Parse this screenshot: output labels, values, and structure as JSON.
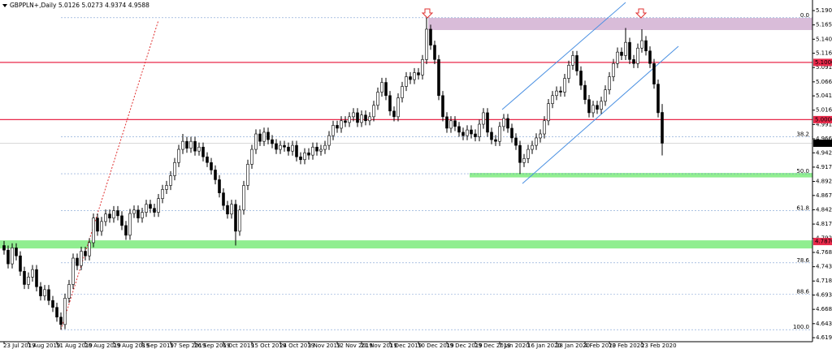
{
  "chart_data": {
    "type": "candlestick",
    "title": "GBPPLN+,Daily  5.0126 5.0273 4.9374 4.9588",
    "categories": [
      "23 Jul 2019",
      null,
      null,
      null,
      null,
      null,
      "1 Aug 2019",
      null,
      null,
      null,
      null,
      null,
      null,
      "11 Aug 2019",
      null,
      null,
      null,
      null,
      null,
      null,
      "20 Aug 2019",
      null,
      null,
      null,
      null,
      null,
      null,
      "29 Aug 2019",
      null,
      null,
      null,
      null,
      null,
      null,
      "8 Sep 2019",
      null,
      null,
      null,
      null,
      null,
      null,
      "17 Sep 2019",
      null,
      null,
      null,
      null,
      null,
      "26 Sep 2019",
      null,
      null,
      null,
      null,
      null,
      null,
      "6 Oct 2019",
      null,
      null,
      null,
      null,
      null,
      null,
      "15 Oct 2019",
      null,
      null,
      null,
      null,
      null,
      null,
      "24 Oct 2019",
      null,
      null,
      null,
      null,
      null,
      null,
      "3 Nov 2019",
      null,
      null,
      null,
      null,
      null,
      null,
      "12 Nov 2019",
      null,
      null,
      null,
      null,
      null,
      "21 Nov 2019",
      null,
      null,
      null,
      null,
      null,
      null,
      "1 Dec 2019",
      null,
      null,
      null,
      null,
      null,
      null,
      "10 Dec 2019",
      null,
      null,
      null,
      null,
      null,
      null,
      "19 Dec 2019",
      null,
      null,
      null,
      null,
      null,
      null,
      "29 Dec 2019",
      null,
      null,
      null,
      null,
      null,
      "7 Jan 2020",
      null,
      null,
      null,
      null,
      null,
      null,
      "16 Jan 2020",
      null,
      null,
      null,
      null,
      null,
      null,
      "28 Jan 2020",
      null,
      null,
      null,
      null,
      null,
      null,
      "4 Feb 2020",
      null,
      null,
      null,
      null,
      null,
      "13 Feb 2020",
      null,
      null,
      null,
      null,
      null,
      null,
      null,
      "23 Feb 2020",
      null,
      null,
      null,
      null,
      null
    ],
    "open": [
      4.78,
      4.772,
      4.748,
      4.776,
      4.762,
      4.735,
      4.712,
      4.725,
      4.738,
      4.708,
      4.692,
      4.703,
      4.684,
      4.672,
      4.655,
      4.642,
      4.688,
      4.712,
      4.758,
      4.745,
      4.77,
      4.762,
      4.785,
      4.828,
      4.805,
      4.822,
      4.835,
      4.828,
      4.841,
      4.832,
      4.815,
      4.798,
      4.836,
      4.842,
      4.828,
      4.838,
      4.852,
      4.845,
      4.838,
      4.862,
      4.878,
      4.885,
      4.902,
      4.925,
      4.948,
      4.962,
      4.95,
      4.962,
      4.945,
      4.952,
      4.935,
      4.925,
      4.912,
      4.895,
      4.872,
      4.85,
      4.835,
      4.852,
      4.805,
      4.842,
      4.885,
      4.922,
      4.948,
      4.975,
      4.962,
      4.978,
      4.965,
      4.958,
      4.948,
      4.955,
      4.952,
      4.945,
      4.955,
      4.935,
      4.93,
      4.942,
      4.938,
      4.952,
      4.945,
      4.948,
      4.955,
      4.972,
      4.99,
      4.985,
      4.998,
      4.995,
      5.005,
      5.012,
      4.995,
      5.008,
      4.998,
      5.005,
      5.025,
      5.048,
      5.065,
      5.042,
      5.015,
      5.005,
      5.038,
      5.058,
      5.075,
      5.07,
      5.082,
      5.078,
      5.105,
      5.158,
      5.13,
      5.105,
      5.042,
      5.005,
      4.985,
      4.998,
      4.988,
      4.978,
      4.972,
      4.982,
      4.975,
      4.97,
      4.992,
      5.012,
      4.978,
      4.965,
      4.962,
      4.988,
      5.002,
      4.985,
      4.968,
      4.955,
      4.925,
      4.932,
      4.948,
      4.955,
      4.968,
      4.975,
      4.998,
      5.028,
      5.042,
      5.05,
      5.048,
      5.072,
      5.095,
      5.112,
      5.085,
      5.06,
      5.035,
      5.012,
      5.025,
      5.018,
      5.032,
      5.052,
      5.075,
      5.098,
      5.118,
      5.112,
      5.135,
      5.105,
      5.098,
      5.125,
      5.138,
      5.12,
      5.098,
      5.062,
      5.0126
    ],
    "high": [
      4.788,
      4.78,
      4.784,
      4.784,
      4.77,
      4.743,
      4.733,
      4.746,
      4.746,
      4.716,
      4.711,
      4.711,
      4.692,
      4.68,
      4.663,
      4.696,
      4.72,
      4.766,
      4.766,
      4.778,
      4.778,
      4.793,
      4.836,
      4.836,
      4.83,
      4.843,
      4.843,
      4.849,
      4.849,
      4.84,
      4.823,
      4.844,
      4.85,
      4.85,
      4.846,
      4.86,
      4.86,
      4.853,
      4.87,
      4.886,
      4.893,
      4.91,
      4.933,
      4.956,
      4.975,
      4.97,
      4.97,
      4.97,
      4.96,
      4.96,
      4.943,
      4.933,
      4.92,
      4.903,
      4.88,
      4.858,
      4.86,
      4.86,
      4.85,
      4.893,
      4.93,
      4.956,
      4.983,
      4.983,
      4.986,
      4.986,
      4.973,
      4.966,
      4.963,
      4.963,
      4.96,
      4.963,
      4.963,
      4.943,
      4.95,
      4.95,
      4.96,
      4.96,
      4.956,
      4.963,
      4.98,
      4.998,
      4.998,
      5.006,
      5.006,
      5.013,
      5.02,
      5.02,
      5.016,
      5.016,
      5.013,
      5.033,
      5.056,
      5.073,
      5.073,
      5.05,
      5.023,
      5.046,
      5.066,
      5.083,
      5.083,
      5.09,
      5.09,
      5.113,
      5.178,
      5.166,
      5.138,
      5.113,
      5.05,
      5.013,
      5.006,
      5.006,
      4.996,
      4.986,
      4.99,
      4.99,
      4.983,
      5.0,
      5.02,
      5.02,
      4.986,
      4.973,
      4.996,
      5.01,
      5.01,
      4.993,
      4.976,
      4.963,
      4.94,
      4.956,
      4.963,
      4.976,
      4.983,
      5.006,
      5.036,
      5.05,
      5.058,
      5.058,
      5.08,
      5.103,
      5.12,
      5.12,
      5.093,
      5.068,
      5.043,
      5.033,
      5.033,
      5.04,
      5.06,
      5.083,
      5.106,
      5.126,
      5.126,
      5.16,
      5.143,
      5.113,
      5.133,
      5.158,
      5.146,
      5.128,
      5.106,
      5.07,
      5.0273
    ],
    "low": [
      4.764,
      4.74,
      4.74,
      4.754,
      4.727,
      4.704,
      4.704,
      4.717,
      4.7,
      4.684,
      4.684,
      4.676,
      4.664,
      4.647,
      4.633,
      4.634,
      4.68,
      4.704,
      4.737,
      4.737,
      4.754,
      4.754,
      4.777,
      4.797,
      4.797,
      4.814,
      4.82,
      4.82,
      4.824,
      4.807,
      4.79,
      4.79,
      4.828,
      4.82,
      4.82,
      4.83,
      4.837,
      4.83,
      4.83,
      4.854,
      4.87,
      4.877,
      4.894,
      4.917,
      4.94,
      4.942,
      4.942,
      4.937,
      4.937,
      4.927,
      4.917,
      4.904,
      4.887,
      4.864,
      4.842,
      4.827,
      4.827,
      4.78,
      4.797,
      4.834,
      4.877,
      4.914,
      4.94,
      4.954,
      4.954,
      4.957,
      4.95,
      4.94,
      4.94,
      4.944,
      4.937,
      4.937,
      4.927,
      4.922,
      4.922,
      4.93,
      4.93,
      4.937,
      4.937,
      4.94,
      4.947,
      4.964,
      4.977,
      4.977,
      4.987,
      4.987,
      4.997,
      4.987,
      4.987,
      4.99,
      4.99,
      4.997,
      5.017,
      5.04,
      5.034,
      5.007,
      4.997,
      4.997,
      5.03,
      5.05,
      5.062,
      5.062,
      5.07,
      5.07,
      5.097,
      5.122,
      5.097,
      5.034,
      4.997,
      4.977,
      4.977,
      4.98,
      4.97,
      4.964,
      4.964,
      4.967,
      4.962,
      4.962,
      4.984,
      4.97,
      4.957,
      4.954,
      4.954,
      4.98,
      4.977,
      4.96,
      4.947,
      4.905,
      4.917,
      4.924,
      4.94,
      4.947,
      4.96,
      4.967,
      4.99,
      5.02,
      5.034,
      5.04,
      5.04,
      5.064,
      5.087,
      5.077,
      5.052,
      5.027,
      5.004,
      5.004,
      5.01,
      5.01,
      5.024,
      5.044,
      5.067,
      5.09,
      5.104,
      5.104,
      5.097,
      5.09,
      5.09,
      5.117,
      5.112,
      5.09,
      5.054,
      5.004,
      4.9374
    ],
    "close": [
      4.772,
      4.748,
      4.776,
      4.762,
      4.735,
      4.712,
      4.725,
      4.738,
      4.708,
      4.692,
      4.703,
      4.684,
      4.672,
      4.655,
      4.642,
      4.688,
      4.712,
      4.758,
      4.745,
      4.77,
      4.762,
      4.785,
      4.828,
      4.805,
      4.822,
      4.835,
      4.828,
      4.841,
      4.832,
      4.815,
      4.798,
      4.836,
      4.842,
      4.828,
      4.838,
      4.852,
      4.845,
      4.838,
      4.862,
      4.878,
      4.885,
      4.902,
      4.925,
      4.948,
      4.962,
      4.95,
      4.962,
      4.945,
      4.952,
      4.935,
      4.925,
      4.912,
      4.895,
      4.872,
      4.85,
      4.835,
      4.852,
      4.805,
      4.842,
      4.885,
      4.922,
      4.948,
      4.975,
      4.962,
      4.978,
      4.965,
      4.958,
      4.948,
      4.955,
      4.952,
      4.945,
      4.955,
      4.935,
      4.93,
      4.942,
      4.938,
      4.952,
      4.945,
      4.948,
      4.955,
      4.972,
      4.99,
      4.985,
      4.998,
      4.995,
      5.005,
      5.012,
      4.995,
      5.008,
      4.998,
      5.005,
      5.025,
      5.048,
      5.065,
      5.042,
      5.015,
      5.005,
      5.038,
      5.058,
      5.075,
      5.07,
      5.082,
      5.078,
      5.105,
      5.158,
      5.13,
      5.105,
      5.042,
      5.005,
      4.985,
      4.998,
      4.988,
      4.978,
      4.972,
      4.982,
      4.975,
      4.97,
      4.992,
      5.012,
      4.978,
      4.965,
      4.962,
      4.988,
      5.002,
      4.985,
      4.968,
      4.955,
      4.925,
      4.932,
      4.948,
      4.955,
      4.968,
      4.975,
      4.998,
      5.028,
      5.042,
      5.05,
      5.048,
      5.072,
      5.095,
      5.112,
      5.085,
      5.06,
      5.035,
      5.012,
      5.025,
      5.018,
      5.032,
      5.052,
      5.075,
      5.098,
      5.118,
      5.112,
      5.135,
      5.105,
      5.098,
      5.125,
      5.138,
      5.12,
      5.098,
      5.062,
      5.012,
      4.9588
    ],
    "bull_color": "#ffffff",
    "bear_color": "#000000",
    "ylim": [
      4.612,
      5.209
    ],
    "yticks": [
      5.1905,
      5.1655,
      5.1405,
      {
        "value": 5.116,
        "label": "5.1160"
      },
      {
        "value": 5.091,
        "label": "5.0910"
      },
      {
        "value": 5.066,
        "label": "5.0660"
      },
      5.0415,
      5.0165,
      4.9915,
      4.9665,
      {
        "value": 4.942,
        "label": "4.9420"
      },
      {
        "value": 4.917,
        "label": "4.9170"
      },
      {
        "value": 4.892,
        "label": "4.8920"
      },
      4.8675,
      4.8425,
      4.8175,
      4.7925,
      {
        "value": 4.768,
        "label": "4.7680"
      },
      {
        "value": 4.743,
        "label": "4.7430"
      },
      {
        "value": 4.718,
        "label": "4.7180"
      },
      4.6935,
      4.6685,
      4.6435,
      {
        "value": 4.619,
        "label": "4.6190"
      }
    ],
    "grid": false,
    "zones": [
      {
        "ylim": [
          5.1565,
          5.1777
        ],
        "x0": 104.4,
        "color": "#d9bcd9"
      },
      {
        "ylim": [
          4.899,
          4.9068
        ],
        "x0": 114.6,
        "color": "#90ee90"
      },
      {
        "ylim": [
          4.7749,
          4.7891
        ],
        "x0": -1,
        "color": "#90ee90"
      }
    ],
    "levels": [
      {
        "value": 5.1,
        "label": "5.1000",
        "color": "#e8294a",
        "line_color": "#e8294a"
      },
      {
        "value": 5.0,
        "label": "5.0000",
        "color": "#e8294a",
        "line_color": "#e8294a"
      },
      {
        "value": 4.9588,
        "label": "4.9588",
        "color": "#000000",
        "line_color": "#c0c0c0"
      },
      {
        "value": 4.787,
        "label": "4.7870",
        "color": "#e8294a",
        "line_color": null
      }
    ],
    "fibonacci": {
      "x0": 14,
      "color": "#5b86c5",
      "levels": [
        {
          "value": 5.178,
          "label": "0.0"
        },
        {
          "value": 4.9698,
          "label": "38.2"
        },
        {
          "value": 4.9055,
          "label": "50.0"
        },
        {
          "value": 4.8413,
          "label": "61.8"
        },
        {
          "value": 4.7498,
          "label": "78.6"
        },
        {
          "value": 4.6953,
          "label": "88.6"
        },
        {
          "value": 4.633,
          "label": "100.0"
        }
      ]
    },
    "trendlines": [
      {
        "x": [
          14,
          38
        ],
        "y": [
          4.633,
          5.1735
        ],
        "color": "#e03030",
        "dash": true
      },
      {
        "x": [
          122.6,
          153
        ],
        "y": [
          5.0175,
          5.2047
        ],
        "color": "#4a90e2",
        "dash": false
      },
      {
        "x": [
          127.6,
          166
        ],
        "y": [
          4.8884,
          5.1281
        ],
        "color": "#4a90e2",
        "dash": false
      }
    ]
  }
}
